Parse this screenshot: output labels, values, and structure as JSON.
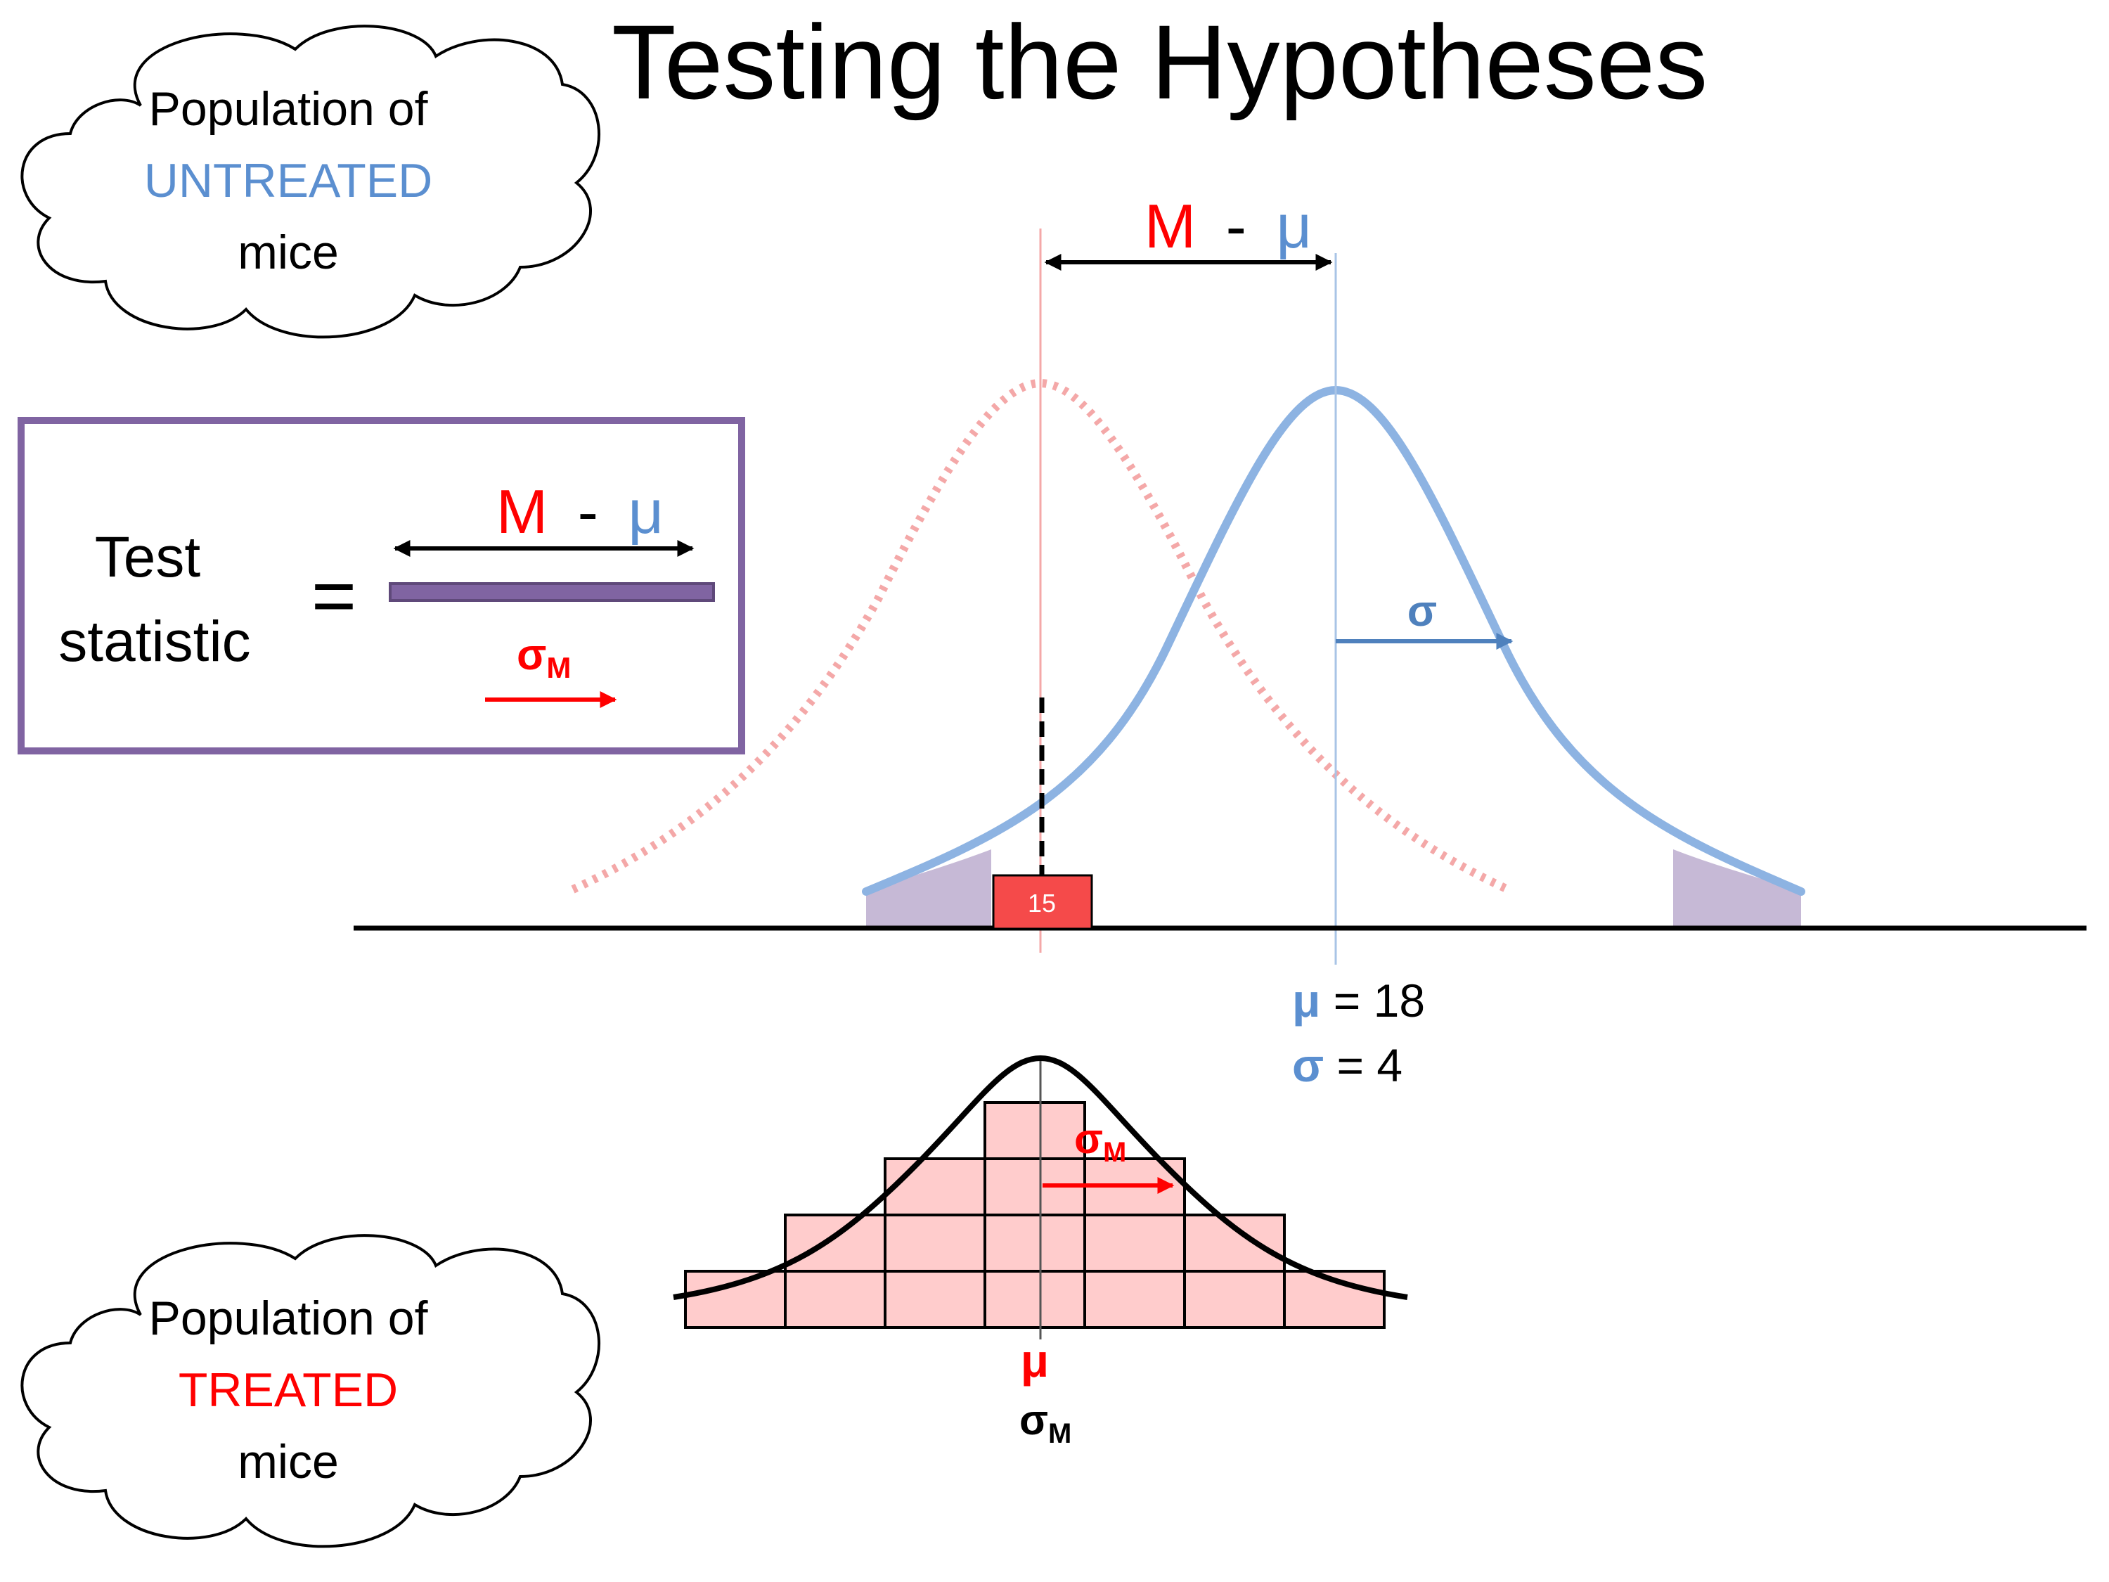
{
  "title": "Testing the Hypotheses",
  "colors": {
    "red": "#ff0000",
    "blue": "#5b8fd0",
    "purple": "#8064a2",
    "pink_fill": "#ffcccc",
    "pink_curve": "#f4a8a8",
    "tail_fill": "#c6b9d6",
    "sample_box": "#f54a4a",
    "black": "#000000"
  },
  "cloud_top": {
    "line1": "Population of",
    "line2": "UNTREATED",
    "line3": "mice"
  },
  "cloud_bottom": {
    "line1": "Population of",
    "line2": "TREATED",
    "line3": "mice"
  },
  "formula_box": {
    "left_line1": "Test",
    "left_line2": "statistic",
    "equals": "=",
    "numerator_m": "M",
    "numerator_dash": "-",
    "numerator_mu": "μ",
    "denominator_sigma": "σ",
    "denominator_sub": "M"
  },
  "top_diagram": {
    "diff_m": "M",
    "diff_dash": "-",
    "diff_mu": "μ",
    "sigma_label": "σ",
    "sample_value": "15",
    "mu_symbol": "μ",
    "mu_text": " = 18",
    "sigma_symbol": "σ",
    "sigma_text": " = 4"
  },
  "bottom_diagram": {
    "sigma_m_label": "σ",
    "sigma_m_sub": "M",
    "mu_label": "μ",
    "bottom_sigma": "σ",
    "bottom_sigma_sub": "M"
  }
}
